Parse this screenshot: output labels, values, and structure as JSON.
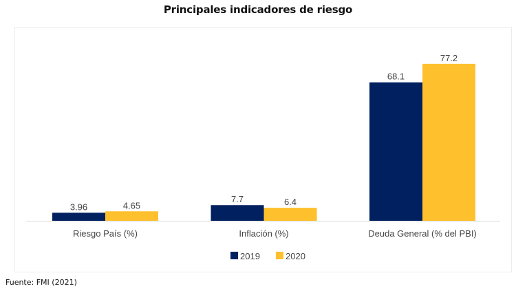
{
  "chart_data": {
    "type": "bar",
    "title": "Principales indicadores de riesgo",
    "categories": [
      "Riesgo País (%)",
      "Inflación (%)",
      "Deuda General (% del PBI)"
    ],
    "series": [
      {
        "name": "2019",
        "color": "#002060",
        "values": [
          3.96,
          7.7,
          68.1
        ],
        "labels": [
          "3.96",
          "7.7",
          "68.1"
        ]
      },
      {
        "name": "2020",
        "color": "#FFC02D",
        "values": [
          4.65,
          6.4,
          77.2
        ],
        "labels": [
          "4.65",
          "6.4",
          "77.2"
        ]
      }
    ],
    "xlabel": "",
    "ylabel": "",
    "ylim": [
      0,
      90
    ],
    "grid": false,
    "legend": "bottom-center",
    "source": "Fuente: FMI (2021)"
  }
}
